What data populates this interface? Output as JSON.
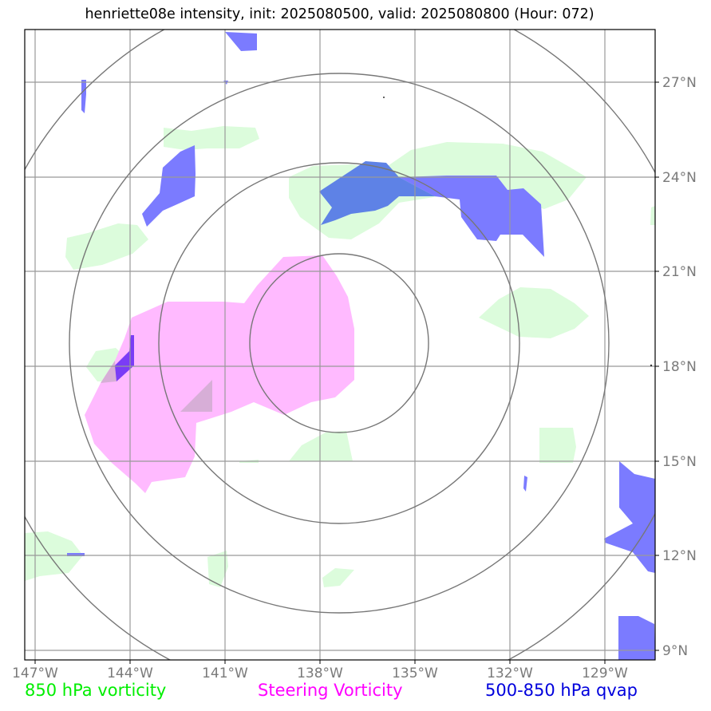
{
  "title": "henriette08e intensity, init: 2025080500, valid: 2025080800 (Hour: 072)",
  "longitude_ticks": [
    "147°W",
    "144°W",
    "141°W",
    "138°W",
    "135°W",
    "132°W",
    "129°W"
  ],
  "latitude_ticks": [
    "27°N",
    "24°N",
    "21°N",
    "18°N",
    "15°N",
    "12°N",
    "9°N"
  ],
  "legend": {
    "vort850": {
      "label": "850 hPa vorticity",
      "color": "#00ee00"
    },
    "steering": {
      "label": "Steering Vorticity",
      "color": "#ff00ff"
    },
    "qvap": {
      "label": "500-850 hPa qvap",
      "color": "#0000dd"
    }
  },
  "fill_colors": {
    "vort850": "#dcfcdc",
    "steering": "#ffbaff",
    "qvap": "#7b7bff",
    "overlap": "#5e82e6",
    "overlap_steering_qvap": "#7a3cf6"
  },
  "range_rings": 4
}
